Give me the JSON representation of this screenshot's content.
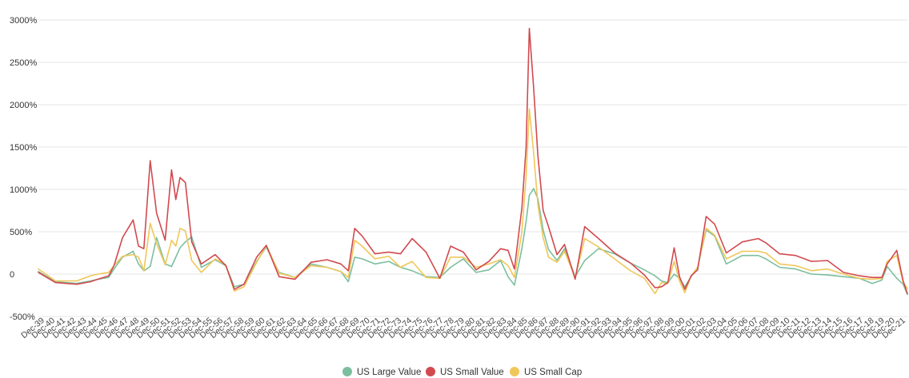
{
  "chart_data": {
    "type": "line",
    "title": "",
    "xlabel": "",
    "ylabel": "",
    "ylim": [
      -500,
      3000
    ],
    "yticks": [
      -500,
      0,
      500,
      1000,
      1500,
      2000,
      2500,
      3000
    ],
    "ytick_labels": [
      "-500%",
      "0",
      "500%",
      "1000%",
      "1500%",
      "2000%",
      "2500%",
      "3000%"
    ],
    "grid": true,
    "legend_position": "bottom-center",
    "x_categories": [
      "Dec-39",
      "Dec-40",
      "Dec-41",
      "Dec-42",
      "Dec-43",
      "Dec-44",
      "Dec-45",
      "Dec-46",
      "Dec-47",
      "Dec-48",
      "Dec-49",
      "Dec-50",
      "Dec-51",
      "Dec-52",
      "Dec-53",
      "Dec-54",
      "Dec-55",
      "Dec-56",
      "Dec-57",
      "Dec-58",
      "Dec-59",
      "Dec-60",
      "Dec-61",
      "Dec-62",
      "Dec-63",
      "Dec-64",
      "Dec-65",
      "Dec-66",
      "Dec-67",
      "Dec-68",
      "Dec-69",
      "Dec-70",
      "Dec-71",
      "Dec-72",
      "Dec-73",
      "Dec-74",
      "Dec-75",
      "Dec-76",
      "Dec-77",
      "Dec-78",
      "Dec-79",
      "Dec-80",
      "Dec-81",
      "Dec-82",
      "Dec-83",
      "Dec-84",
      "Dec-85",
      "Dec-86",
      "Dec-87",
      "Dec-88",
      "Dec-89",
      "Dec-90",
      "Dec-91",
      "Dec-92",
      "Dec-93",
      "Dec-94",
      "Dec-95",
      "Dec-96",
      "Dec-97",
      "Dec-98",
      "Dec-99",
      "Dec-00",
      "Dec-01",
      "Dec-02",
      "Dec-03",
      "Dec-04",
      "Dec-05",
      "Dec-06",
      "Dec-07",
      "Dec-08",
      "Dec-09",
      "Dec-10",
      "Dec-11",
      "Dec-12",
      "Dec-13",
      "Dec-14",
      "Dec-15",
      "Dec-16",
      "Dec-17",
      "Dec-18",
      "Dec-19",
      "Dec-20",
      "Dec-21"
    ],
    "x": [
      1939.9,
      1941.5,
      1943.5,
      1944.8,
      1945.5,
      1946.5,
      1947.0,
      1947.8,
      1948.8,
      1949.3,
      1949.8,
      1950.4,
      1951.0,
      1951.8,
      1952.4,
      1952.8,
      1953.2,
      1953.7,
      1954.3,
      1955.2,
      1956.5,
      1957.5,
      1958.3,
      1959.2,
      1960.4,
      1961.3,
      1962.5,
      1964.0,
      1965.5,
      1967.0,
      1968.3,
      1969.0,
      1969.6,
      1970.3,
      1971.5,
      1972.8,
      1973.9,
      1975.0,
      1976.3,
      1977.6,
      1978.6,
      1979.8,
      1981.0,
      1982.2,
      1983.3,
      1984.0,
      1984.6,
      1985.3,
      1985.7,
      1986.0,
      1986.4,
      1986.8,
      1987.3,
      1987.8,
      1988.6,
      1989.3,
      1990.3,
      1991.2,
      1992.5,
      1994.0,
      1995.5,
      1996.8,
      1997.8,
      1998.4,
      1999.0,
      1999.6,
      2000.1,
      2000.6,
      2001.2,
      2001.8,
      2002.6,
      2003.4,
      2004.5,
      2006.0,
      2007.5,
      2008.2,
      2009.5,
      2011.0,
      2012.5,
      2014.0,
      2015.5,
      2017.0,
      2018.2,
      2019.1,
      2019.6,
      2020.5,
      2021.1,
      2021.5
    ],
    "series": [
      {
        "name": "US Large Value",
        "color": "#7cbf9f",
        "values": [
          30,
          -90,
          -110,
          -80,
          -60,
          -40,
          60,
          200,
          270,
          120,
          40,
          90,
          430,
          120,
          90,
          200,
          310,
          380,
          440,
          80,
          170,
          100,
          -150,
          -120,
          150,
          320,
          20,
          -40,
          120,
          80,
          30,
          -90,
          200,
          180,
          120,
          150,
          80,
          40,
          -30,
          -40,
          80,
          180,
          20,
          50,
          160,
          -30,
          -130,
          300,
          620,
          930,
          1010,
          890,
          520,
          290,
          160,
          300,
          -30,
          160,
          300,
          240,
          130,
          50,
          -20,
          -80,
          -100,
          0,
          -50,
          -150,
          -30,
          80,
          520,
          450,
          120,
          220,
          220,
          180,
          80,
          60,
          0,
          -10,
          -30,
          -50,
          -110,
          -70,
          90,
          -50,
          -120,
          -240
        ]
      },
      {
        "name": "US Small Value",
        "color": "#d14a4f",
        "values": [
          20,
          -100,
          -120,
          -90,
          -60,
          -20,
          100,
          430,
          640,
          330,
          300,
          1340,
          720,
          400,
          1230,
          880,
          1140,
          1080,
          380,
          120,
          230,
          100,
          -180,
          -120,
          200,
          340,
          -30,
          -60,
          140,
          170,
          120,
          40,
          540,
          450,
          240,
          260,
          240,
          420,
          260,
          -50,
          330,
          260,
          50,
          150,
          300,
          280,
          60,
          780,
          1500,
          2900,
          2200,
          1400,
          750,
          560,
          230,
          350,
          -60,
          560,
          420,
          250,
          130,
          -10,
          -160,
          -150,
          -100,
          310,
          -30,
          -180,
          -20,
          50,
          680,
          590,
          250,
          380,
          420,
          370,
          240,
          220,
          150,
          160,
          20,
          -20,
          -40,
          -40,
          120,
          280,
          -80,
          -230
        ]
      },
      {
        "name": "US Small Cap",
        "color": "#f0c75a",
        "values": [
          60,
          -80,
          -80,
          -20,
          0,
          20,
          100,
          210,
          230,
          200,
          40,
          600,
          360,
          110,
          400,
          330,
          540,
          510,
          160,
          20,
          180,
          110,
          -200,
          -150,
          140,
          340,
          10,
          -40,
          100,
          80,
          30,
          -40,
          400,
          330,
          180,
          210,
          80,
          150,
          -40,
          -50,
          200,
          200,
          80,
          120,
          170,
          100,
          -40,
          500,
          1150,
          1950,
          1430,
          820,
          430,
          200,
          140,
          270,
          -40,
          420,
          320,
          180,
          40,
          -50,
          -230,
          -100,
          -110,
          150,
          -80,
          -220,
          -20,
          80,
          540,
          460,
          180,
          270,
          270,
          250,
          120,
          100,
          40,
          60,
          0,
          -50,
          -60,
          -50,
          150,
          220,
          -100,
          -170
        ]
      }
    ]
  },
  "legend": [
    {
      "label": "US Large Value",
      "color": "#7cbf9f"
    },
    {
      "label": "US Small Value",
      "color": "#d14a4f"
    },
    {
      "label": "US Small Cap",
      "color": "#f0c75a"
    }
  ]
}
